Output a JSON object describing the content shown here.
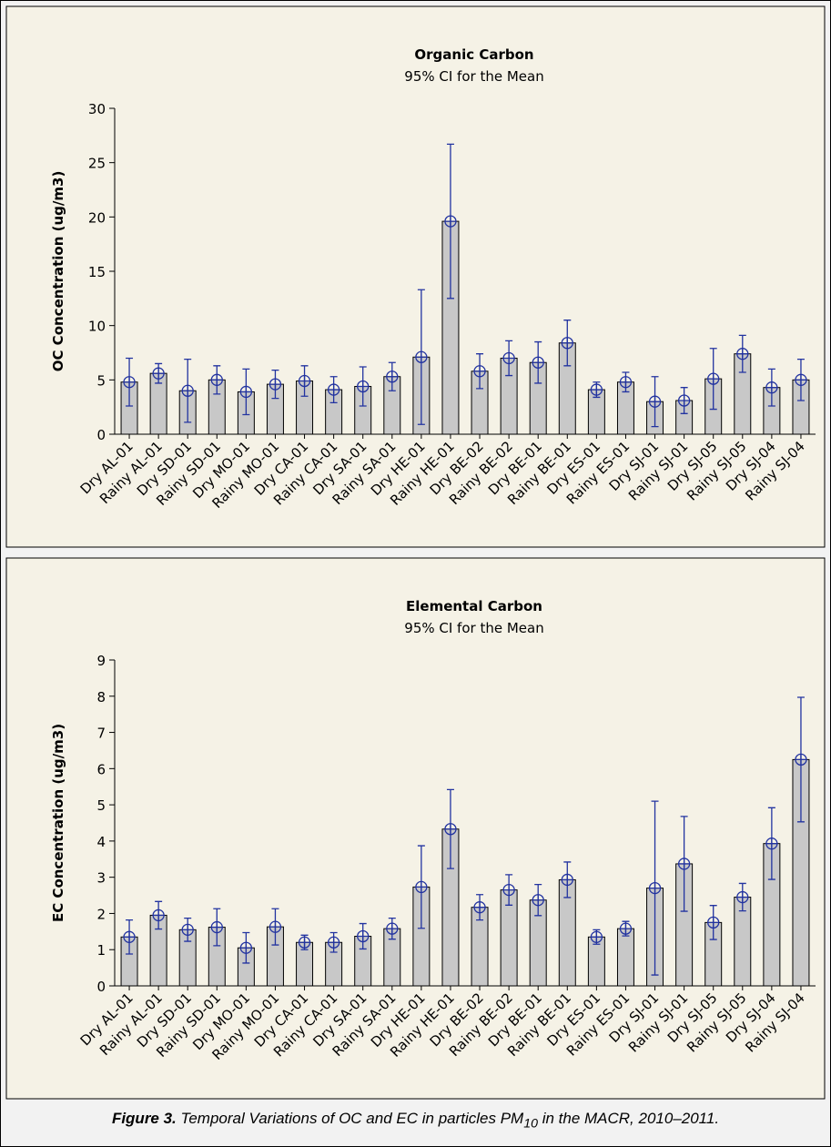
{
  "chart_data": [
    {
      "type": "bar",
      "title": "Organic Carbon",
      "subtitle": "95% CI for the Mean",
      "ylabel": "OC Concentration (ug/m3)",
      "categories": [
        "Dry AL-01",
        "Rainy AL-01",
        "Dry SD-01",
        "Rainy SD-01",
        "Dry MO-01",
        "Rainy MO-01",
        "Dry CA-01",
        "Rainy CA-01",
        "Dry SA-01",
        "Rainy SA-01",
        "Dry HE-01",
        "Rainy HE-01",
        "Dry BE-02",
        "Rainy BE-02",
        "Dry BE-01",
        "Rainy BE-01",
        "Dry ES-01",
        "Rainy ES-01",
        "Dry SJ-01",
        "Rainy SJ-01",
        "Dry SJ-05",
        "Rainy SJ-05",
        "Dry SJ-04",
        "Rainy SJ-04"
      ],
      "values": [
        4.8,
        5.6,
        4.0,
        5.0,
        3.9,
        4.6,
        4.9,
        4.1,
        4.4,
        5.3,
        7.1,
        19.6,
        5.8,
        7.0,
        6.6,
        8.4,
        4.1,
        4.8,
        3.0,
        3.1,
        5.1,
        7.4,
        4.3,
        5.0
      ],
      "errors": [
        2.2,
        0.9,
        2.9,
        1.3,
        2.1,
        1.3,
        1.4,
        1.2,
        1.8,
        1.3,
        6.2,
        7.1,
        1.6,
        1.6,
        1.9,
        2.1,
        0.7,
        0.9,
        2.3,
        1.2,
        2.8,
        1.7,
        1.7,
        1.9
      ],
      "color": "#c8c8c8",
      "error_color": "#2233a0",
      "ylim": [
        0,
        30
      ],
      "yticks": [
        0,
        5,
        10,
        15,
        20,
        25,
        30
      ]
    },
    {
      "type": "bar",
      "title": "Elemental Carbon",
      "subtitle": "95% CI for the Mean",
      "ylabel": "EC Concentration (ug/m3)",
      "categories": [
        "Dry AL-01",
        "Rainy AL-01",
        "Dry SD-01",
        "Rainy SD-01",
        "Dry MO-01",
        "Rainy MO-01",
        "Dry CA-01",
        "Rainy CA-01",
        "Dry SA-01",
        "Rainy SA-01",
        "Dry HE-01",
        "Rainy HE-01",
        "Dry BE-02",
        "Rainy BE-02",
        "Dry BE-01",
        "Rainy BE-01",
        "Dry ES-01",
        "Rainy ES-01",
        "Dry SJ-01",
        "Rainy SJ-01",
        "Dry SJ-05",
        "Rainy SJ-05",
        "Dry SJ-04",
        "Rainy SJ-04"
      ],
      "values": [
        1.35,
        1.95,
        1.55,
        1.62,
        1.05,
        1.63,
        1.2,
        1.2,
        1.37,
        1.58,
        2.73,
        4.33,
        2.17,
        2.65,
        2.37,
        2.93,
        1.35,
        1.58,
        2.7,
        3.37,
        1.75,
        2.45,
        3.93,
        6.25
      ],
      "errors": [
        0.47,
        0.38,
        0.32,
        0.51,
        0.42,
        0.5,
        0.2,
        0.27,
        0.35,
        0.29,
        1.14,
        1.09,
        0.35,
        0.42,
        0.43,
        0.49,
        0.2,
        0.2,
        2.4,
        1.31,
        0.47,
        0.38,
        0.99,
        1.72
      ],
      "color": "#c8c8c8",
      "error_color": "#2233a0",
      "ylim": [
        0,
        9
      ],
      "yticks": [
        0,
        1,
        2,
        3,
        4,
        5,
        6,
        7,
        8,
        9
      ]
    }
  ],
  "caption": {
    "label": "Figure 3.",
    "text": "Temporal Variations of OC and EC in particles PM",
    "subscript": "10",
    "text_end": " in the MACR, 2010–2011."
  }
}
